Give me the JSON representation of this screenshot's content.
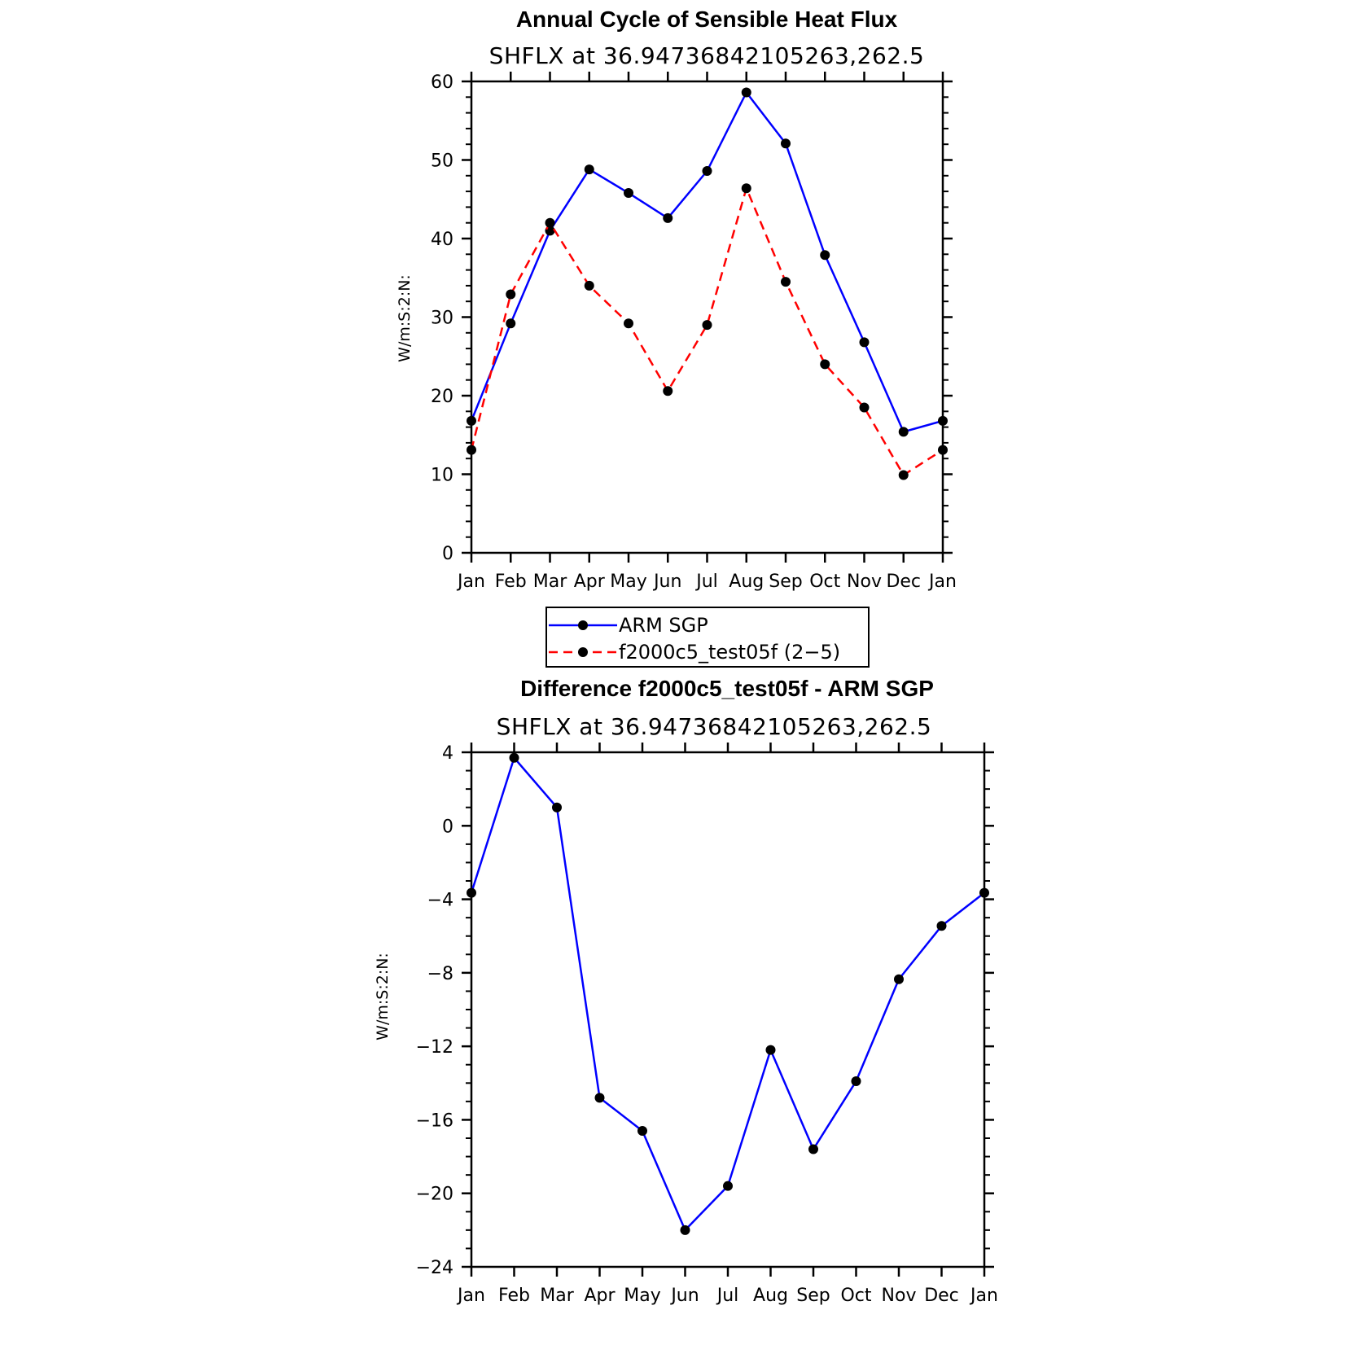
{
  "chart_data": [
    {
      "type": "line",
      "title": "Annual Cycle of Sensible Heat Flux",
      "subtitle": "SHFLX at 36.94736842105263,262.5",
      "ylabel": "W/m:S:2:N:",
      "xlabel": "",
      "categories": [
        "Jan",
        "Feb",
        "Mar",
        "Apr",
        "May",
        "Jun",
        "Jul",
        "Aug",
        "Sep",
        "Oct",
        "Nov",
        "Dec",
        "Jan"
      ],
      "ylim": [
        0,
        60
      ],
      "yticks": [
        0,
        10,
        20,
        30,
        40,
        50,
        60
      ],
      "grid": false,
      "legend": "below",
      "series": [
        {
          "name": "ARM SGP",
          "color": "#0000ff",
          "dash": "solid",
          "values": [
            16.8,
            29.2,
            41.0,
            48.8,
            45.8,
            42.6,
            48.6,
            58.6,
            52.1,
            37.9,
            26.8,
            15.4,
            16.8
          ]
        },
        {
          "name": "f2000c5_test05f (2−5)",
          "color": "#ff0000",
          "dash": "dashed",
          "values": [
            13.1,
            32.9,
            42.0,
            34.0,
            29.2,
            20.6,
            29.0,
            46.4,
            34.5,
            24.0,
            18.5,
            9.9,
            13.1
          ]
        }
      ]
    },
    {
      "type": "line",
      "title": "Difference f2000c5_test05f - ARM SGP",
      "subtitle": "SHFLX at 36.94736842105263,262.5",
      "ylabel": "W/m:S:2:N:",
      "xlabel": "",
      "categories": [
        "Jan",
        "Feb",
        "Mar",
        "Apr",
        "May",
        "Jun",
        "Jul",
        "Aug",
        "Sep",
        "Oct",
        "Nov",
        "Dec",
        "Jan"
      ],
      "ylim": [
        -24,
        4
      ],
      "yticks": [
        -24,
        -20,
        -16,
        -12,
        -8,
        -4,
        0,
        4
      ],
      "ytick_labels": [
        "−24",
        "−20",
        "−16",
        "−12",
        "−8",
        "−4",
        "0",
        "4"
      ],
      "grid": false,
      "series": [
        {
          "color": "#0000ff",
          "dash": "solid",
          "values": [
            -3.65,
            3.7,
            1.0,
            -14.8,
            -16.6,
            -22.0,
            -19.6,
            -12.2,
            -17.6,
            -13.9,
            -8.35,
            -5.45,
            -3.65
          ]
        }
      ]
    }
  ]
}
